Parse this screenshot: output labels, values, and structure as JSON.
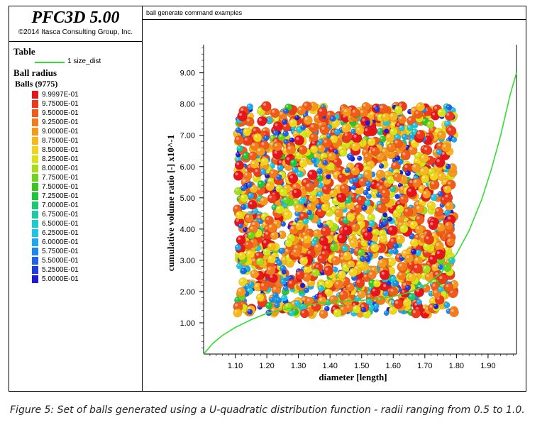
{
  "header": {
    "app_title": "PFC3D 5.00",
    "copyright": "©2014 Itasca Consulting Group, Inc.",
    "plot_title": "ball generate command examples"
  },
  "legend": {
    "table_heading": "Table",
    "table_series_label": "1 size_dist",
    "table_series_color": "#33dd33",
    "ball_heading": "Ball radius",
    "balls_label": "Balls (9775)",
    "color_scale": [
      {
        "label": "9.9997E-01",
        "color": "#e8141c"
      },
      {
        "label": "9.7500E-01",
        "color": "#ee3a1a"
      },
      {
        "label": "9.5000E-01",
        "color": "#f25a1a"
      },
      {
        "label": "9.2500E-01",
        "color": "#f47a1c"
      },
      {
        "label": "9.0000E-01",
        "color": "#f6981c"
      },
      {
        "label": "8.7500E-01",
        "color": "#f8b81c"
      },
      {
        "label": "8.5000E-01",
        "color": "#f2d41a"
      },
      {
        "label": "8.2500E-01",
        "color": "#d8e418"
      },
      {
        "label": "8.0000E-01",
        "color": "#a6dc18"
      },
      {
        "label": "7.7500E-01",
        "color": "#6cd41c"
      },
      {
        "label": "7.5000E-01",
        "color": "#36c81e"
      },
      {
        "label": "7.2500E-01",
        "color": "#1cc83a"
      },
      {
        "label": "7.0000E-01",
        "color": "#1cc870"
      },
      {
        "label": "6.7500E-01",
        "color": "#1cc8a8"
      },
      {
        "label": "6.5000E-01",
        "color": "#1ccad2"
      },
      {
        "label": "6.2500E-01",
        "color": "#1cc4e8"
      },
      {
        "label": "6.0000E-01",
        "color": "#1ca8ec"
      },
      {
        "label": "5.7500E-01",
        "color": "#1c88ec"
      },
      {
        "label": "5.5000E-01",
        "color": "#1c64e8"
      },
      {
        "label": "5.2500E-01",
        "color": "#1c3ce4"
      },
      {
        "label": "5.0000E-01",
        "color": "#1c1cd8"
      }
    ]
  },
  "chart_data": {
    "type": "line",
    "xlabel": "diameter    [length]",
    "ylabel": "cumulative volume ratio [-] x10^-1",
    "xlim": [
      1.0,
      1.99
    ],
    "ylim": [
      0.0,
      9.9
    ],
    "xticks": [
      "1.10",
      "1.20",
      "1.30",
      "1.40",
      "1.50",
      "1.60",
      "1.70",
      "1.80",
      "1.90"
    ],
    "yticks": [
      "1.00",
      "2.00",
      "3.00",
      "4.00",
      "5.00",
      "6.00",
      "7.00",
      "8.00",
      "9.00"
    ],
    "grid": false,
    "series": [
      {
        "name": "1 size_dist",
        "color": "#33dd33",
        "x": [
          1.0,
          1.03,
          1.06,
          1.1,
          1.15,
          1.2,
          1.25,
          1.3,
          1.35,
          1.4,
          1.45,
          1.5,
          1.55,
          1.6,
          1.65,
          1.7,
          1.75,
          1.8,
          1.84,
          1.88,
          1.91,
          1.94,
          1.97,
          1.99
        ],
        "y": [
          0.0,
          0.35,
          0.6,
          0.85,
          1.1,
          1.3,
          1.42,
          1.52,
          1.6,
          1.66,
          1.7,
          1.72,
          1.76,
          1.84,
          1.97,
          2.18,
          2.58,
          3.2,
          3.95,
          4.95,
          5.9,
          7.0,
          8.3,
          9.0
        ]
      }
    ],
    "ball_region": {
      "x_min": 1.1,
      "x_max": 1.8,
      "y_min": 1.2,
      "y_max": 8.0,
      "count_label": "Balls (9775)"
    }
  },
  "caption": "Figure 5: Set of balls generated using a U-quadratic distribution function - radii ranging from 0.5 to 1.0."
}
